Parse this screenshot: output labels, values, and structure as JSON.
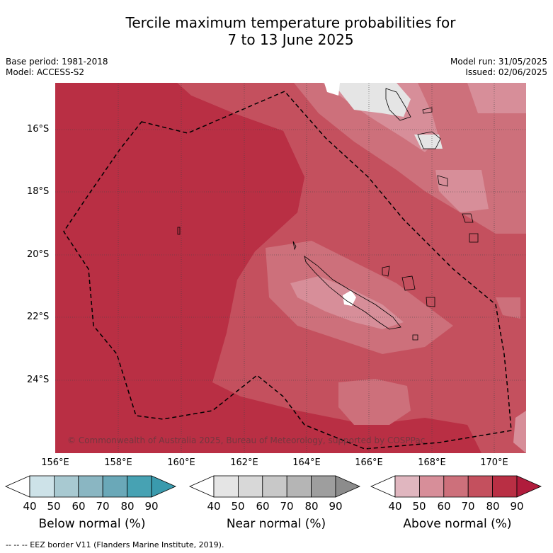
{
  "title_line1": "Tercile maximum temperature probabilities for",
  "title_line2": "7 to 13 June 2025",
  "meta_left": [
    "Base period: 1981-2018",
    "Model: ACCESS-S2"
  ],
  "meta_right": [
    "Model run: 31/05/2025",
    "Issued: 02/06/2025"
  ],
  "lat_labels": [
    "16°S",
    "18°S",
    "20°S",
    "22°S",
    "24°S"
  ],
  "lon_labels": [
    "156°E",
    "158°E",
    "160°E",
    "162°E",
    "164°E",
    "166°E",
    "168°E",
    "170°E"
  ],
  "copyright": "© Commonwealth of Australia 2025, Bureau of Meteorology, supported by COSPPac",
  "legend_ticks": [
    "40",
    "50",
    "60",
    "70",
    "80",
    "90"
  ],
  "legends": [
    {
      "title": "Below normal (%)",
      "colors": [
        "#ffffff",
        "#cde2e8",
        "#a8c9d1",
        "#8ab6c2",
        "#6aa8b8",
        "#47a2b3",
        "#3a9aad"
      ]
    },
    {
      "title": "Near normal (%)",
      "colors": [
        "#ffffff",
        "#e5e5e5",
        "#d8d8d8",
        "#c8c8c8",
        "#b5b5b5",
        "#9e9e9e",
        "#8c8c8c"
      ]
    },
    {
      "title": "Above normal (%)",
      "colors": [
        "#ffffff",
        "#e0b6bf",
        "#d78e99",
        "#cd707b",
        "#c4505e",
        "#b92f44",
        "#b01c3c"
      ]
    }
  ],
  "eez_note": "-- -- -- EEZ border V11 (Flanders Marine Institute, 2019)."
}
